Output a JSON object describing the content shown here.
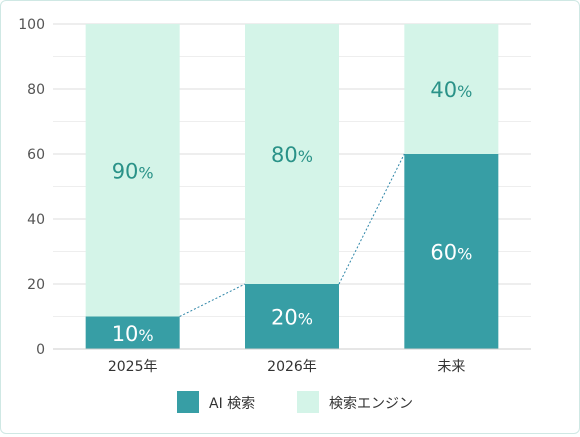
{
  "chart_data": {
    "type": "bar",
    "stacked": true,
    "categories": [
      "2025年",
      "2026年",
      "未来"
    ],
    "series": [
      {
        "name": "AI 検索",
        "values": [
          10,
          20,
          60
        ],
        "color": "#379ea5",
        "label_color": "#ffffff"
      },
      {
        "name": "検索エンジン",
        "values": [
          90,
          80,
          40
        ],
        "color": "#d4f4e8",
        "label_color": "#2a9288"
      }
    ],
    "ylim": [
      0,
      100
    ],
    "yticks": [
      "0",
      "20",
      "40",
      "60",
      "80",
      "100"
    ],
    "data_labels": [
      [
        "10",
        "20",
        "60"
      ],
      [
        "90",
        "80",
        "40"
      ]
    ],
    "data_label_unit": "%",
    "connector_line": {
      "style": "dotted",
      "color": "#2f86a8"
    },
    "grid": true,
    "legend": {
      "position": "bottom-center"
    }
  }
}
